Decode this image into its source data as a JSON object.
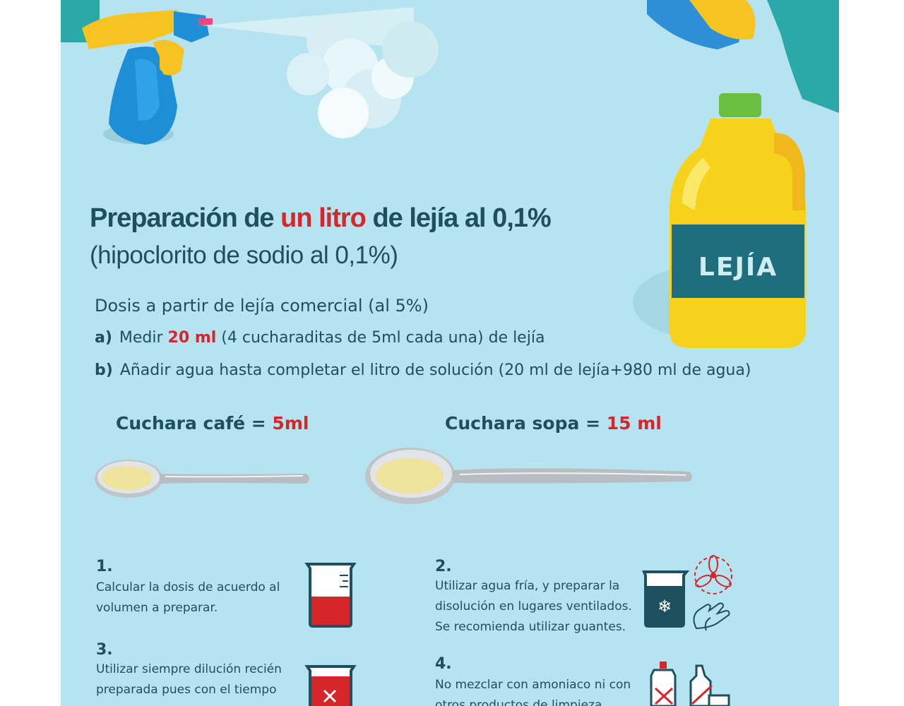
{
  "title": {
    "part1": "Preparación de ",
    "highlight": "un litro",
    "part2": " de lejía al 0,1%"
  },
  "subtitle": "(hipoclorito de sodio al 0,1%)",
  "bottle_label": "LEJÍA",
  "dosis": "Dosis a partir de lejía comercial (al 5%)",
  "steps": [
    {
      "label": "a)",
      "before": "Medir ",
      "highlight": "20 ml",
      "after": " (4 cucharaditas de 5ml cada una) de lejía"
    },
    {
      "label": "b)",
      "text": "Añadir agua hasta completar el litro de solución (20 ml de lejía+980 ml de agua)"
    }
  ],
  "spoons": [
    {
      "name": "Cuchara café",
      "eq": " = ",
      "value": "5ml"
    },
    {
      "name": "Cuchara sopa",
      "eq": " = ",
      "value": "15 ml"
    }
  ],
  "instructions": [
    {
      "number": "1.",
      "lines": [
        "Calcular la dosis de acuerdo al",
        "volumen a preparar."
      ]
    },
    {
      "number": "2.",
      "lines": [
        "Utilizar agua fría, y preparar la",
        "disolución en lugares ventilados.",
        "Se recomienda utilizar guantes."
      ]
    },
    {
      "number": "3.",
      "lines": [
        "Utilizar siempre dilución recién",
        "preparada pues con el tiempo"
      ]
    },
    {
      "number": "4.",
      "lines": [
        "No mezclar con amoniaco ni con",
        "otros productos de limpieza"
      ]
    }
  ],
  "colors": {
    "background": "#b5e3ef",
    "text": "#1e4f5e",
    "accent_red": "#d7262b",
    "bottle_yellow": "#f7d21c",
    "label_teal": "#1f6e7e"
  }
}
